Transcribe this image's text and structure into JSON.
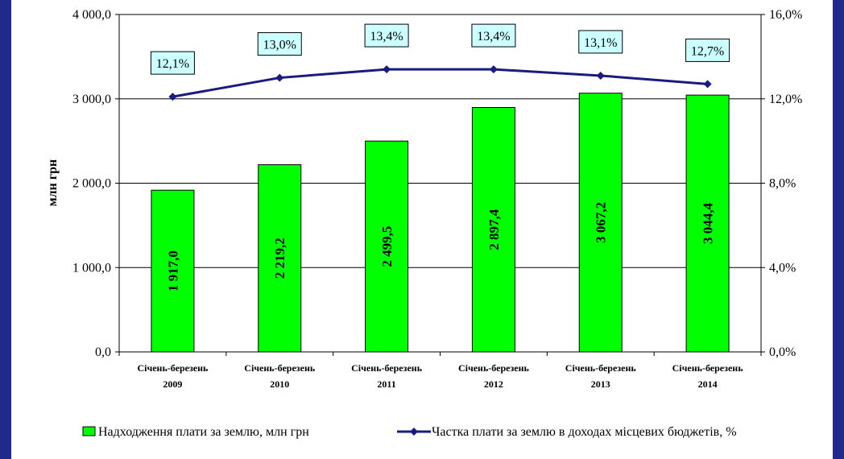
{
  "chart_data": {
    "type": "bar",
    "ylabel": "млн грн",
    "ylim": [
      0,
      4000
    ],
    "y2lim": [
      0,
      16
    ],
    "y_ticks": [
      "0,0",
      "1 000,0",
      "2 000,0",
      "3 000,0",
      "4 000,0"
    ],
    "y2_ticks": [
      "0,0%",
      "4,0%",
      "8,0%",
      "12,0%",
      "16,0%"
    ],
    "categories": [
      [
        "Січень-березень",
        "2009"
      ],
      [
        "Січень-березень",
        "2010"
      ],
      [
        "Січень-березень",
        "2011"
      ],
      [
        "Січень-березень",
        "2012"
      ],
      [
        "Січень-березень",
        "2013"
      ],
      [
        "Січень-березень",
        "2014"
      ]
    ],
    "series": [
      {
        "name": "Надходження плати за землю, млн грн",
        "type": "bar",
        "axis": "left",
        "color": "#00ff00",
        "values": [
          1917.0,
          2219.2,
          2499.5,
          2897.4,
          3067.2,
          3044.4
        ],
        "labels": [
          "1 917,0",
          "2 219,2",
          "2 499,5",
          "2 897,4",
          "3 067,2",
          "3 044,4"
        ]
      },
      {
        "name": "Частка плати за землю в доходах місцевих бюджетів, %",
        "type": "line",
        "axis": "right",
        "color": "#1a1a80",
        "values": [
          12.1,
          13.0,
          13.4,
          13.4,
          13.1,
          12.7
        ],
        "labels": [
          "12,1%",
          "13,0%",
          "13,4%",
          "13,4%",
          "13,1%",
          "12,7%"
        ]
      }
    ],
    "grid": true,
    "legend": "bottom"
  }
}
